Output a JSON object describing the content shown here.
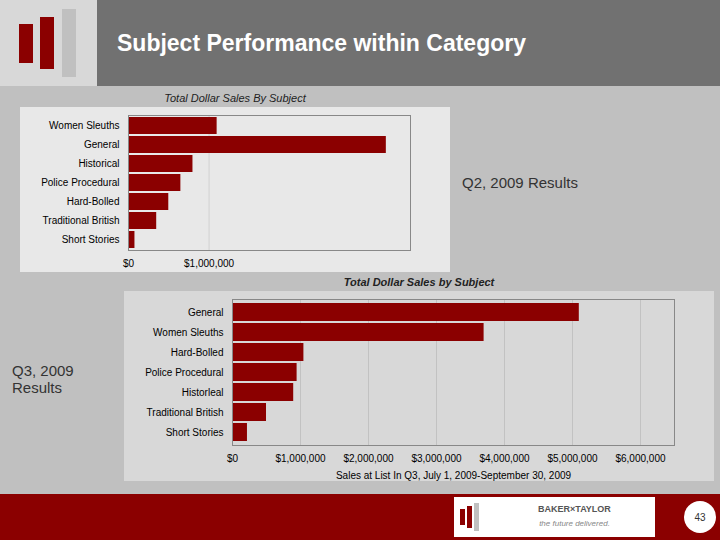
{
  "title": "Subject Performance within Category",
  "annotations": [
    "BAKER×TAYLOR",
    "the future delivered.",
    "43"
  ],
  "chart_data": [
    {
      "type": "bar",
      "orientation": "horizontal",
      "title": "Total Dollar Sales By Subject",
      "annotations": [
        "Q2, 2009 Results"
      ],
      "categories": [
        "Short Stories",
        "Traditional British",
        "Hard-Bolled",
        "Police Procedural",
        "Historical",
        "General",
        "Women Sleuths"
      ],
      "values": [
        80000,
        350000,
        500000,
        650000,
        800000,
        3200000,
        1100000
      ],
      "color": "#8b0000",
      "xlim": [
        0,
        3500000
      ],
      "xticks": [
        {
          "value": 0,
          "label": "$0"
        },
        {
          "value": 1000000,
          "label": "$1,000,000"
        }
      ],
      "grid": true
    },
    {
      "type": "bar",
      "orientation": "horizontal",
      "title": "Total Dollar Sales by Subject",
      "xlabel": "Sales at List In Q3, July 1, 2009-September 30, 2009",
      "annotations": [
        "Q3, 2009 Results"
      ],
      "categories": [
        "Short Stories",
        "Traditional British",
        "Historleal",
        "Police Procedural",
        "Hard-Bolled",
        "Women Sleuths",
        "General"
      ],
      "values": [
        220000,
        500000,
        900000,
        950000,
        1050000,
        3700000,
        5100000
      ],
      "color": "#8b0000",
      "xlim": [
        0,
        6500000
      ],
      "xticks": [
        {
          "value": 0,
          "label": "$0"
        },
        {
          "value": 1000000,
          "label": "$1,000,000"
        },
        {
          "value": 2000000,
          "label": "$2,000,000"
        },
        {
          "value": 3000000,
          "label": "$3,000,000"
        },
        {
          "value": 4000000,
          "label": "$4,000,000"
        },
        {
          "value": 5000000,
          "label": "$5,000,000"
        },
        {
          "value": 6000000,
          "label": "$6,000,000"
        }
      ],
      "grid": true
    }
  ]
}
